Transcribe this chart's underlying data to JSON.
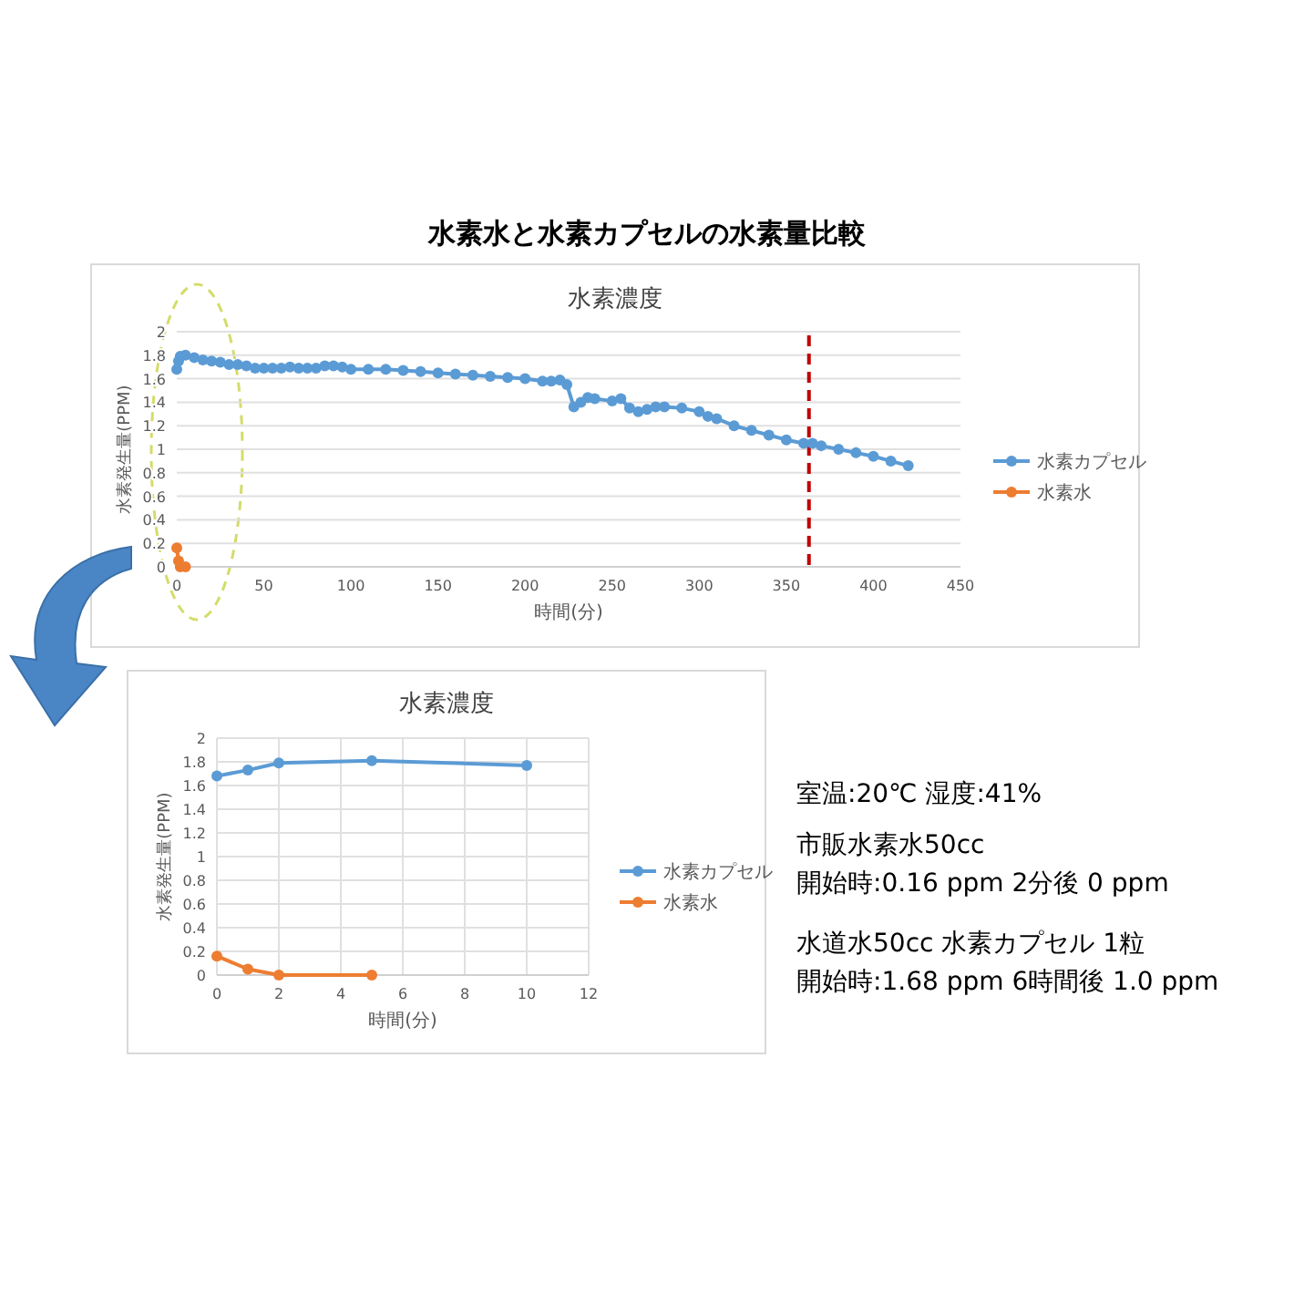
{
  "chart_data": [
    {
      "type": "line",
      "title": "水素濃度",
      "xlabel": "時間(分)",
      "ylabel": "水素発生量(PPM)",
      "xlim": [
        0,
        450
      ],
      "xticks": [
        0,
        50,
        100,
        150,
        200,
        250,
        300,
        350,
        400,
        450
      ],
      "ylim": [
        0,
        2
      ],
      "yticks": [
        0,
        0.2,
        0.4,
        0.6,
        0.8,
        1,
        1.2,
        1.4,
        1.6,
        1.8,
        2
      ],
      "grid": "y",
      "legend": "right",
      "marker": "circle",
      "line_style": "solid",
      "series": [
        {
          "name": "水素カプセル",
          "color": "#5b9bd5",
          "x": [
            0,
            1,
            2,
            5,
            10,
            15,
            20,
            25,
            30,
            35,
            40,
            45,
            50,
            55,
            60,
            65,
            70,
            75,
            80,
            85,
            90,
            95,
            100,
            110,
            120,
            130,
            140,
            150,
            160,
            170,
            180,
            190,
            200,
            210,
            215,
            220,
            224,
            228,
            232,
            236,
            240,
            250,
            255,
            260,
            265,
            270,
            275,
            280,
            290,
            300,
            305,
            310,
            320,
            330,
            340,
            350,
            360,
            365,
            370,
            380,
            390,
            400,
            410,
            420
          ],
          "values": [
            1.68,
            1.75,
            1.79,
            1.8,
            1.78,
            1.76,
            1.75,
            1.74,
            1.72,
            1.72,
            1.71,
            1.69,
            1.69,
            1.69,
            1.69,
            1.7,
            1.69,
            1.69,
            1.69,
            1.71,
            1.71,
            1.7,
            1.68,
            1.68,
            1.68,
            1.67,
            1.66,
            1.65,
            1.64,
            1.63,
            1.62,
            1.61,
            1.6,
            1.58,
            1.58,
            1.59,
            1.55,
            1.36,
            1.4,
            1.44,
            1.43,
            1.41,
            1.43,
            1.35,
            1.32,
            1.34,
            1.36,
            1.36,
            1.35,
            1.32,
            1.28,
            1.26,
            1.2,
            1.16,
            1.12,
            1.08,
            1.05,
            1.05,
            1.03,
            1,
            0.97,
            0.94,
            0.9,
            0.86
          ]
        },
        {
          "name": "水素水",
          "color": "#ed7d31",
          "x": [
            0,
            1,
            2,
            5
          ],
          "values": [
            0.16,
            0.05,
            0,
            0
          ]
        }
      ],
      "ref_lines": [
        {
          "axis": "x",
          "value": 363,
          "color": "#c00000",
          "line_style": "dashed"
        }
      ]
    },
    {
      "type": "line",
      "title": "水素濃度",
      "xlabel": "時間(分)",
      "ylabel": "水素発生量(PPM)",
      "xlim": [
        0,
        12
      ],
      "xticks": [
        0,
        2,
        4,
        6,
        8,
        10,
        12
      ],
      "ylim": [
        0,
        2
      ],
      "yticks": [
        0,
        0.2,
        0.4,
        0.6,
        0.8,
        1,
        1.2,
        1.4,
        1.6,
        1.8,
        2
      ],
      "grid": true,
      "legend": "right",
      "marker": "circle",
      "line_style": "solid",
      "series": [
        {
          "name": "水素カプセル",
          "color": "#5b9bd5",
          "x": [
            0,
            1,
            2,
            5,
            10
          ],
          "values": [
            1.68,
            1.73,
            1.79,
            1.81,
            1.77
          ]
        },
        {
          "name": "水素水",
          "color": "#ed7d31",
          "x": [
            0,
            1,
            2,
            5
          ],
          "values": [
            0.16,
            0.05,
            0,
            0
          ]
        }
      ]
    },
    {
      "type": "other",
      "title": "水素水と水素カプセルの水素量比較",
      "annotations": [
        "室温:20℃ 湿度:41%",
        "市販水素水50cc",
        "開始時:0.16 ppm 2分後 0 ppm",
        "水道水50cc 水素カプセル 1粒",
        "開始時:1.68 ppm 6時間後 1.0 ppm"
      ]
    }
  ]
}
